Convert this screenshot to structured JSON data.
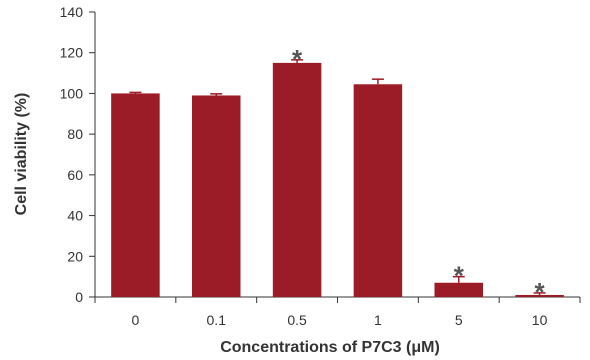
{
  "chart_data": {
    "type": "bar",
    "title": "",
    "xlabel": "Concentrations of P7C3 (μM)",
    "ylabel": "Cell viability (%)",
    "ylim": [
      0,
      140
    ],
    "yticks": [
      "0",
      "20",
      "40",
      "60",
      "80",
      "100",
      "120",
      "140"
    ],
    "categories": [
      "0",
      "0.1",
      "0.5",
      "1",
      "5",
      "10"
    ],
    "values": [
      100,
      99,
      115,
      104.5,
      7,
      1
    ],
    "errors": [
      0.5,
      0.8,
      1.5,
      2.5,
      3,
      1
    ],
    "significance": [
      "",
      "",
      "*",
      "",
      "*",
      "*"
    ],
    "bar_color": "#9b1b27",
    "grid": false,
    "legend": "none"
  }
}
